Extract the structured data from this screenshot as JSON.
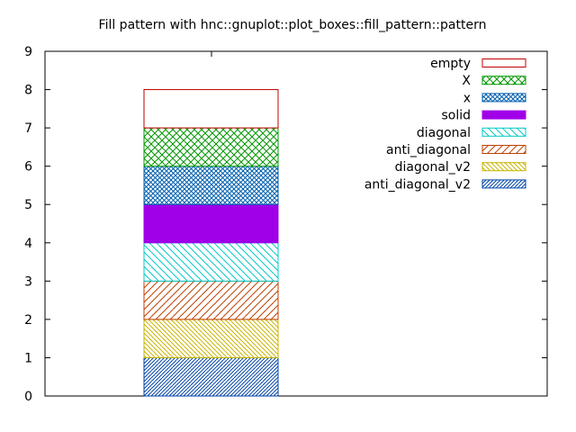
{
  "chart_data": {
    "type": "bar",
    "stacked": true,
    "title": "Fill pattern with hnc::gnuplot::plot_boxes::fill_pattern::pattern",
    "xlabel": "",
    "ylabel": "",
    "ylim": [
      0,
      9
    ],
    "yticks": [
      "0",
      "1",
      "2",
      "3",
      "4",
      "5",
      "6",
      "7",
      "8",
      "9"
    ],
    "grid": false,
    "legend_position": "top-right",
    "series": [
      {
        "name": "anti_diagonal_v2",
        "value": 1,
        "color": "#0044a8",
        "pattern": "anti-diagonal-dense"
      },
      {
        "name": "diagonal_v2",
        "value": 1,
        "color": "#c8b400",
        "pattern": "diagonal-dense"
      },
      {
        "name": "anti_diagonal",
        "value": 1,
        "color": "#c04000",
        "pattern": "anti-diagonal"
      },
      {
        "name": "diagonal",
        "value": 1,
        "color": "#00c8c8",
        "pattern": "diagonal"
      },
      {
        "name": "solid",
        "value": 1,
        "color": "#a000e8",
        "pattern": "solid"
      },
      {
        "name": "x",
        "value": 1,
        "color": "#0060b0",
        "pattern": "x-dense"
      },
      {
        "name": "X",
        "value": 1,
        "color": "#009800",
        "pattern": "crosshatch"
      },
      {
        "name": "empty",
        "value": 1,
        "color": "#c00000",
        "pattern": "empty"
      }
    ],
    "legend_order": [
      "empty",
      "X",
      "x",
      "solid",
      "diagonal",
      "anti_diagonal",
      "diagonal_v2",
      "anti_diagonal_v2"
    ]
  }
}
